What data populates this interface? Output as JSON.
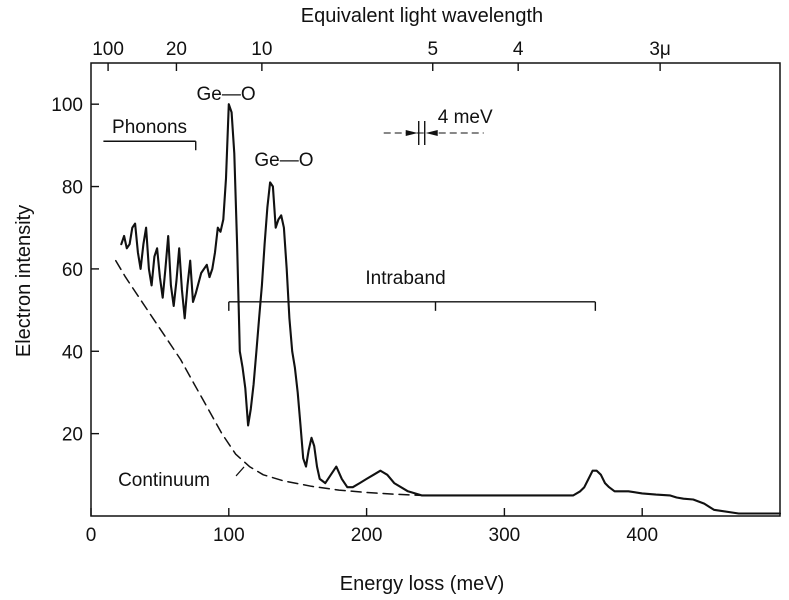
{
  "chart_data": {
    "type": "line",
    "top_axis_title": "Equivalent light wavelength",
    "xlabel": "Energy loss (meV)",
    "ylabel": "Electron intensity",
    "xlim": [
      0,
      500
    ],
    "ylim": [
      0,
      110
    ],
    "x_ticks": [
      0,
      100,
      200,
      300,
      400
    ],
    "y_ticks": [
      20,
      40,
      60,
      80,
      100
    ],
    "top_ticks": [
      {
        "label": "100",
        "energy": 12.4
      },
      {
        "label": "20",
        "energy": 62
      },
      {
        "label": "10",
        "energy": 124
      },
      {
        "label": "5",
        "energy": 248
      },
      {
        "label": "4",
        "energy": 310
      },
      {
        "label": "3μ",
        "energy": 413
      }
    ],
    "series": [
      {
        "style": "solid",
        "x": [
          22,
          24,
          26,
          28,
          30,
          32,
          34,
          36,
          38,
          40,
          42,
          44,
          46,
          48,
          50,
          52,
          54,
          56,
          58,
          60,
          62,
          64,
          66,
          68,
          70,
          72,
          74,
          76,
          80,
          84,
          86,
          88,
          90,
          92,
          94,
          96,
          98,
          100,
          102,
          104,
          106,
          108,
          110,
          112,
          114,
          116,
          118,
          120,
          122,
          124,
          126,
          128,
          130,
          132,
          134,
          136,
          138,
          140,
          142,
          144,
          146,
          148,
          150,
          152,
          154,
          156,
          158,
          160,
          162,
          164,
          166,
          170,
          174,
          178,
          182,
          186,
          190,
          195,
          200,
          205,
          210,
          215,
          220,
          230,
          240,
          260,
          280,
          300,
          320,
          340,
          350,
          355,
          358,
          361,
          364,
          367,
          370,
          373,
          376,
          380,
          385,
          390,
          400,
          410,
          420,
          425,
          430,
          437,
          445,
          452,
          470,
          500
        ],
        "y": [
          66,
          68,
          65,
          66,
          70,
          71,
          64,
          60,
          66,
          70,
          60,
          56,
          63,
          65,
          58,
          53,
          60,
          68,
          56,
          51,
          57,
          65,
          55,
          48,
          56,
          62,
          52,
          54,
          59,
          61,
          58,
          60,
          64,
          70,
          69,
          72,
          82,
          100,
          98,
          88,
          66,
          40,
          36,
          31,
          22,
          26,
          32,
          40,
          48,
          56,
          66,
          75,
          81,
          80,
          70,
          72,
          73,
          70,
          60,
          48,
          40,
          36,
          30,
          22,
          14,
          12,
          16,
          19,
          17,
          12,
          9,
          8,
          10,
          12,
          9,
          7,
          7,
          8,
          9,
          10,
          11,
          10,
          8,
          6,
          5,
          5,
          5,
          5,
          5,
          5,
          5,
          6,
          7,
          9,
          11,
          11,
          10,
          8,
          7,
          6,
          6,
          6,
          5.5,
          5.2,
          5,
          4.5,
          4.2,
          4,
          3,
          1.5,
          0.6,
          0.6
        ]
      },
      {
        "style": "dashed",
        "name": "Continuum",
        "x": [
          18,
          25,
          35,
          45,
          55,
          65,
          75,
          85,
          95,
          105,
          115,
          125,
          140,
          160,
          180,
          200,
          220,
          240
        ],
        "y": [
          62,
          58,
          53,
          48,
          43,
          38,
          32,
          26,
          20,
          15,
          12,
          10,
          8.5,
          7.2,
          6.3,
          5.7,
          5.3,
          5
        ]
      }
    ],
    "annotations": {
      "phonons": {
        "label": "Phonons",
        "x_from": 9,
        "x_to": 76,
        "y": 91
      },
      "peak1": {
        "label": "Ge—O",
        "x": 98,
        "y": 101
      },
      "peak2": {
        "label": "Ge—O",
        "x": 140,
        "y": 85
      },
      "resolution": {
        "label": "4 meV",
        "x": 240,
        "y": 93
      },
      "intraband": {
        "label": "Intraband",
        "x_from": 100,
        "x_to": 366,
        "mid": 250,
        "y": 52
      },
      "continuum": {
        "label": "Continuum",
        "x": 53,
        "y": 9
      }
    }
  }
}
